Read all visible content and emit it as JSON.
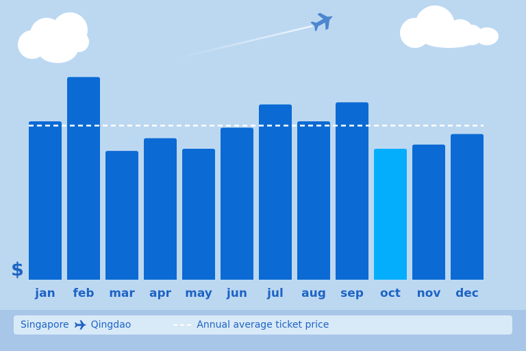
{
  "chart_data": {
    "type": "bar",
    "categories": [
      "jan",
      "feb",
      "mar",
      "apr",
      "may",
      "jun",
      "jul",
      "aug",
      "sep",
      "oct",
      "nov",
      "dec"
    ],
    "values": [
      75,
      96,
      61,
      67,
      62,
      72,
      83,
      75,
      84,
      62,
      64,
      69
    ],
    "highlight_category": "oct",
    "average_line": 73,
    "ylim": [
      0,
      100
    ],
    "grid": false,
    "currency_symbol": "$",
    "legend": {
      "placement": "bottom",
      "route_from": "Singapore",
      "route_to": "Qingdao",
      "average_label": "Annual average ticket price"
    },
    "colors": {
      "bar": "#0b6ad4",
      "highlight": "#04aefc",
      "average_line": "#ffffff",
      "text": "#1d63c4",
      "background": "#bcd8f1"
    }
  },
  "icons": {
    "plane": "airplane-icon",
    "cloud": "cloud-icon"
  }
}
